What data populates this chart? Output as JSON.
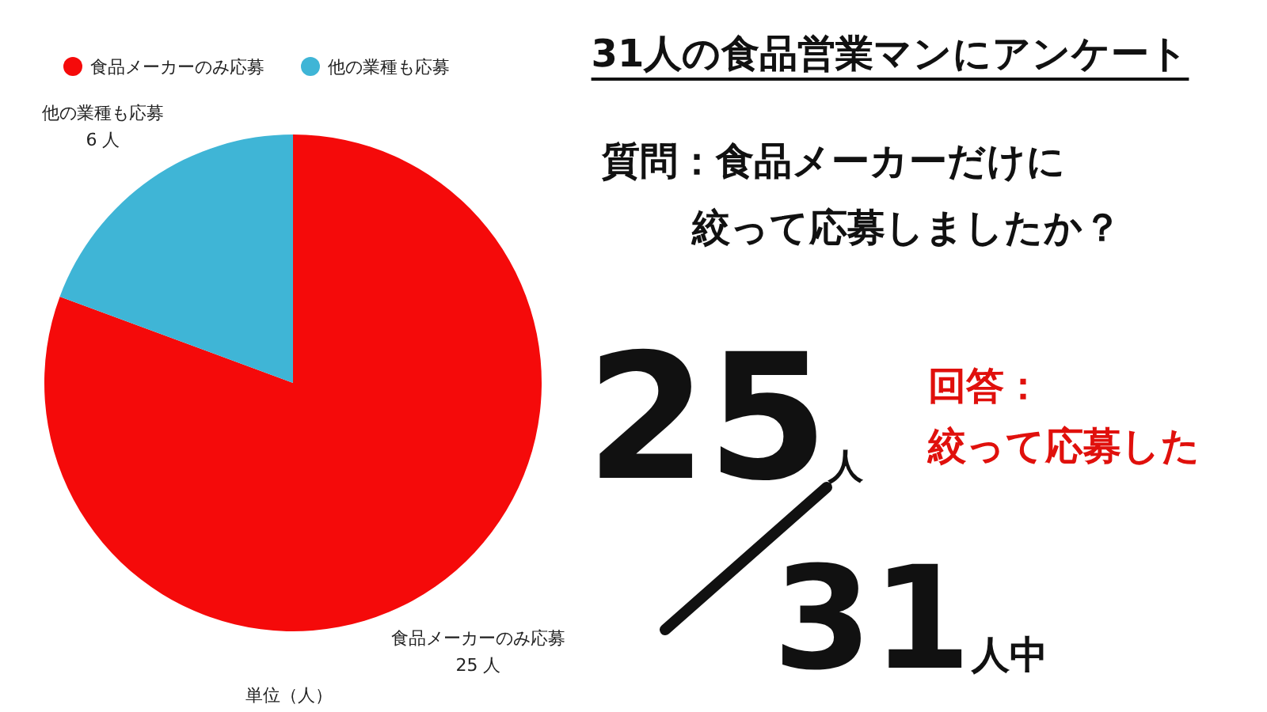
{
  "chart_data": {
    "type": "pie",
    "title": "31人の食品営業マンにアンケート",
    "categories": [
      "食品メーカーのみ応募",
      "他の業種も応募"
    ],
    "values": [
      25,
      6
    ],
    "colors": [
      "#f50a0a",
      "#3fb5d6"
    ],
    "value_labels": [
      "25 人",
      "6 人"
    ],
    "legend": "top left",
    "annotations": [
      "単位（人）",
      "質問：食品メーカーだけに",
      "絞って応募しましたか？",
      "回答：",
      "絞って応募した",
      "25人",
      "31人中"
    ]
  }
}
